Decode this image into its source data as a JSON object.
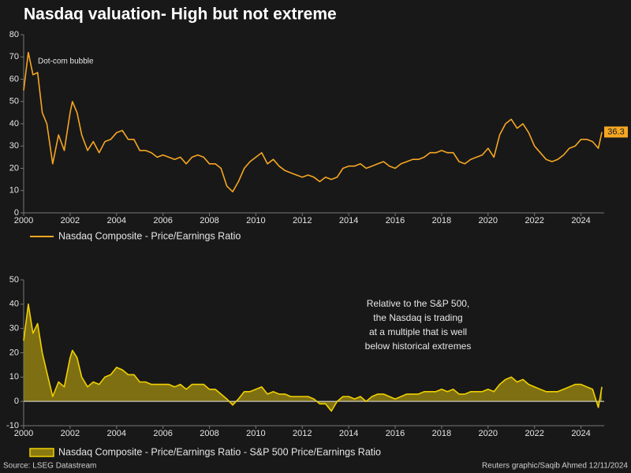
{
  "title": "Nasdaq valuation- High but not extreme",
  "source": "Source: LSEG Datastream",
  "credit": "Reuters graphic/Saqib Ahmed 12/11/2024",
  "chart_data": [
    {
      "type": "line",
      "annotation": "Dot-com bubble",
      "xlim": [
        2000,
        2025
      ],
      "xticks": [
        2000,
        2002,
        2004,
        2006,
        2008,
        2010,
        2012,
        2014,
        2016,
        2018,
        2020,
        2022,
        2024
      ],
      "ylim": [
        0,
        80
      ],
      "yticks": [
        0,
        10,
        20,
        30,
        40,
        50,
        60,
        70,
        80
      ],
      "x": [
        2000.0,
        2000.2,
        2000.4,
        2000.6,
        2000.8,
        2001.0,
        2001.25,
        2001.5,
        2001.75,
        2002.0,
        2002.1,
        2002.3,
        2002.5,
        2002.75,
        2003.0,
        2003.25,
        2003.5,
        2003.75,
        2004.0,
        2004.25,
        2004.5,
        2004.75,
        2005.0,
        2005.25,
        2005.5,
        2005.75,
        2006.0,
        2006.25,
        2006.5,
        2006.75,
        2007.0,
        2007.25,
        2007.5,
        2007.75,
        2008.0,
        2008.25,
        2008.5,
        2008.75,
        2009.0,
        2009.25,
        2009.5,
        2009.75,
        2010.0,
        2010.25,
        2010.5,
        2010.75,
        2011.0,
        2011.25,
        2011.5,
        2011.75,
        2012.0,
        2012.25,
        2012.5,
        2012.75,
        2013.0,
        2013.25,
        2013.5,
        2013.75,
        2014.0,
        2014.25,
        2014.5,
        2014.75,
        2015.0,
        2015.25,
        2015.5,
        2015.75,
        2016.0,
        2016.25,
        2016.5,
        2016.75,
        2017.0,
        2017.25,
        2017.5,
        2017.75,
        2018.0,
        2018.25,
        2018.5,
        2018.75,
        2019.0,
        2019.25,
        2019.5,
        2019.75,
        2020.0,
        2020.25,
        2020.5,
        2020.75,
        2021.0,
        2021.25,
        2021.5,
        2021.75,
        2022.0,
        2022.25,
        2022.5,
        2022.75,
        2023.0,
        2023.25,
        2023.5,
        2023.75,
        2024.0,
        2024.25,
        2024.5,
        2024.75,
        2024.9
      ],
      "series": [
        {
          "name": "Nasdaq Composite - Price/Earnings Ratio",
          "color": "#f5a623",
          "values": [
            55,
            72,
            62,
            63,
            45,
            40,
            22,
            35,
            28,
            45,
            50,
            45,
            35,
            28,
            32,
            27,
            32,
            33,
            36,
            37,
            33,
            33,
            28,
            28,
            27,
            25,
            26,
            25,
            24,
            25,
            22,
            25,
            26,
            25,
            22,
            22,
            20,
            12,
            9.5,
            14,
            20,
            23,
            25,
            27,
            22,
            24,
            21,
            19,
            18,
            17,
            16,
            17,
            16,
            14,
            16,
            15,
            16,
            20,
            21,
            21,
            22,
            20,
            21,
            22,
            23,
            21,
            20,
            22,
            23,
            24,
            24,
            25,
            27,
            27,
            28,
            27,
            27,
            23,
            22,
            24,
            25,
            26,
            29,
            25,
            35,
            40,
            42,
            38,
            40,
            36,
            30,
            27,
            24,
            23,
            24,
            26,
            29,
            30,
            33,
            33,
            32,
            29,
            36.3
          ]
        }
      ]
    },
    {
      "type": "area",
      "annotation": [
        "Relative to the S&P 500,",
        "the Nasdaq is trading",
        "at a multiple that is well",
        "below historical extremes"
      ],
      "xlim": [
        2000,
        2025
      ],
      "xticks": [
        2000,
        2002,
        2004,
        2006,
        2008,
        2010,
        2012,
        2014,
        2016,
        2018,
        2020,
        2022,
        2024
      ],
      "ylim": [
        -10,
        50
      ],
      "yticks": [
        -10,
        0,
        10,
        20,
        30,
        40,
        50
      ],
      "x": [
        2000.0,
        2000.2,
        2000.4,
        2000.6,
        2000.8,
        2001.0,
        2001.25,
        2001.5,
        2001.75,
        2002.0,
        2002.1,
        2002.3,
        2002.5,
        2002.75,
        2003.0,
        2003.25,
        2003.5,
        2003.75,
        2004.0,
        2004.25,
        2004.5,
        2004.75,
        2005.0,
        2005.25,
        2005.5,
        2005.75,
        2006.0,
        2006.25,
        2006.5,
        2006.75,
        2007.0,
        2007.25,
        2007.5,
        2007.75,
        2008.0,
        2008.25,
        2008.5,
        2008.75,
        2009.0,
        2009.25,
        2009.5,
        2009.75,
        2010.0,
        2010.25,
        2010.5,
        2010.75,
        2011.0,
        2011.25,
        2011.5,
        2011.75,
        2012.0,
        2012.25,
        2012.5,
        2012.75,
        2013.0,
        2013.25,
        2013.5,
        2013.75,
        2014.0,
        2014.25,
        2014.5,
        2014.75,
        2015.0,
        2015.25,
        2015.5,
        2015.75,
        2016.0,
        2016.25,
        2016.5,
        2016.75,
        2017.0,
        2017.25,
        2017.5,
        2017.75,
        2018.0,
        2018.25,
        2018.5,
        2018.75,
        2019.0,
        2019.25,
        2019.5,
        2019.75,
        2020.0,
        2020.25,
        2020.5,
        2020.75,
        2021.0,
        2021.25,
        2021.5,
        2021.75,
        2022.0,
        2022.25,
        2022.5,
        2022.75,
        2023.0,
        2023.25,
        2023.5,
        2023.75,
        2024.0,
        2024.25,
        2024.5,
        2024.75,
        2024.9
      ],
      "series": [
        {
          "name": "Nasdaq Composite - Price/Earnings Ratio - S&P 500 Price/Earnings Ratio",
          "color": "#f0d000",
          "values": [
            25,
            40,
            28,
            32,
            20,
            12,
            2,
            8,
            6,
            18,
            21,
            18,
            10,
            6,
            8,
            7,
            10,
            11,
            14,
            13,
            11,
            11,
            8,
            8,
            7,
            7,
            7,
            7,
            6,
            7,
            5,
            7,
            7,
            7,
            5,
            5,
            3,
            1,
            -1.5,
            1,
            4,
            4,
            5,
            6,
            3,
            4,
            3,
            3,
            2,
            2,
            2,
            2,
            1,
            -1,
            -1,
            -4,
            0,
            2,
            2,
            1,
            2,
            0,
            2,
            3,
            3,
            2,
            1,
            2,
            3,
            3,
            3,
            4,
            4,
            4,
            5,
            4,
            5,
            3,
            3,
            4,
            4,
            4,
            5,
            4,
            7,
            9,
            10,
            8,
            9,
            7,
            6,
            5,
            4,
            4,
            4,
            5,
            6,
            7,
            7,
            6,
            5,
            -2.5,
            6
          ]
        }
      ]
    }
  ]
}
